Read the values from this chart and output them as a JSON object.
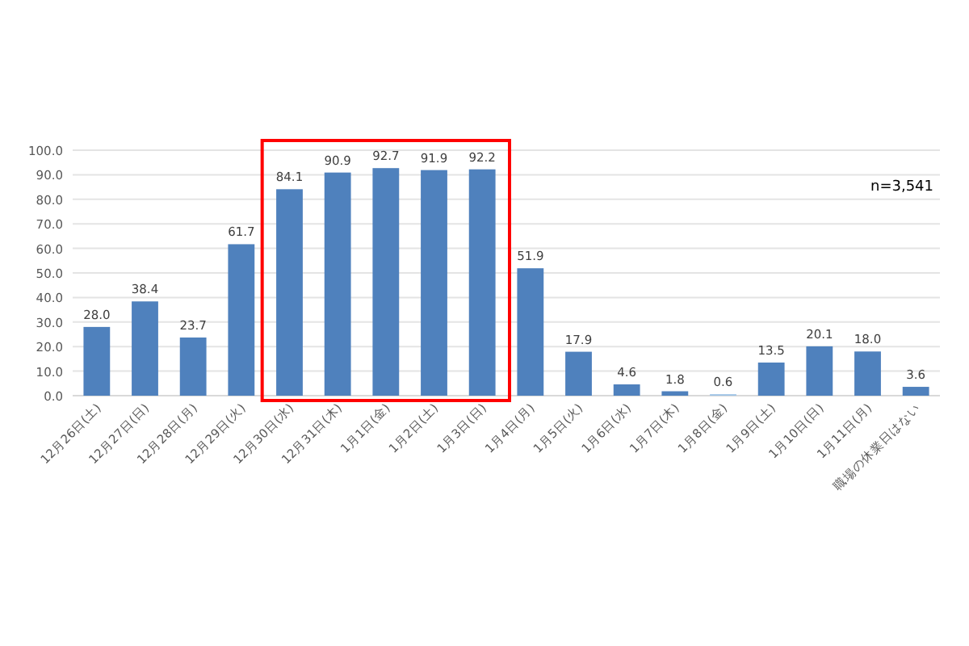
{
  "chart_data": {
    "type": "bar",
    "categories": [
      "12月26日(土)",
      "12月27日(日)",
      "12月28日(月)",
      "12月29日(火)",
      "12月30日(水)",
      "12月31日(木)",
      "1月1日(金)",
      "1月2日(土)",
      "1月3日(日)",
      "1月4日(月)",
      "1月5日(火)",
      "1月6日(水)",
      "1月7日(木)",
      "1月8日(金)",
      "1月9日(土)",
      "1月10日(日)",
      "1月11日(月)",
      "職場の休業日はない"
    ],
    "values": [
      28.0,
      38.4,
      23.7,
      61.7,
      84.1,
      90.9,
      92.7,
      91.9,
      92.2,
      51.9,
      17.9,
      4.6,
      1.8,
      0.6,
      13.5,
      20.1,
      18.0,
      3.6
    ],
    "colors": [
      "#4f81bd",
      "#4f81bd",
      "#4f81bd",
      "#4f81bd",
      "#4f81bd",
      "#4f81bd",
      "#4f81bd",
      "#4f81bd",
      "#4f81bd",
      "#4f81bd",
      "#4f81bd",
      "#4f81bd",
      "#4f81bd",
      "#9dc3e6",
      "#4f81bd",
      "#4f81bd",
      "#4f81bd",
      "#4f81bd"
    ],
    "value_labels": [
      "28.0",
      "38.4",
      "23.7",
      "61.7",
      "84.1",
      "90.9",
      "92.7",
      "91.9",
      "92.2",
      "51.9",
      "17.9",
      "4.6",
      "1.8",
      "0.6",
      "13.5",
      "20.1",
      "18.0",
      "3.6"
    ],
    "ylim": [
      0,
      100
    ],
    "yticks": [
      {
        "value": 0,
        "label": "0.0"
      },
      {
        "value": 10,
        "label": "10.0"
      },
      {
        "value": 20,
        "label": "20.0"
      },
      {
        "value": 30,
        "label": "30.0"
      },
      {
        "value": 40,
        "label": "40.0"
      },
      {
        "value": 50,
        "label": "50.0"
      },
      {
        "value": 60,
        "label": "60.0"
      },
      {
        "value": 70,
        "label": "70.0"
      },
      {
        "value": 80,
        "label": "80.0"
      },
      {
        "value": 90,
        "label": "90.0"
      },
      {
        "value": 100,
        "label": "100.0"
      }
    ],
    "grid": "y",
    "annotations": [
      "n=3,541"
    ]
  }
}
